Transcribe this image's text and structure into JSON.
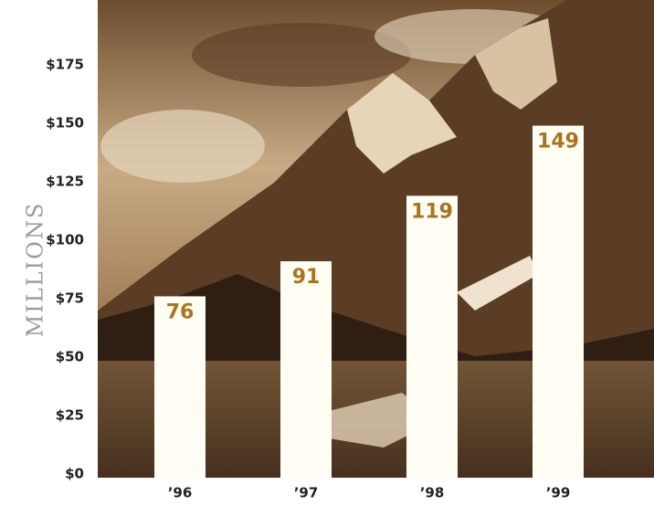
{
  "chart_data": {
    "type": "bar",
    "y_label": "MILLIONS",
    "categories": [
      "’96",
      "’97",
      "’98",
      "’99"
    ],
    "values": [
      76,
      91,
      119,
      149
    ],
    "color": "#fffdf4",
    "label_color": "#a8741c",
    "ylim": [
      0,
      200
    ],
    "yticks": [
      {
        "value": 0,
        "label": "$0"
      },
      {
        "value": 25,
        "label": "$25"
      },
      {
        "value": 50,
        "label": "$50"
      },
      {
        "value": 75,
        "label": "$75"
      },
      {
        "value": 100,
        "label": "$100"
      },
      {
        "value": 125,
        "label": "$125"
      },
      {
        "value": 150,
        "label": "$150"
      },
      {
        "value": 175,
        "label": "$175"
      }
    ]
  }
}
